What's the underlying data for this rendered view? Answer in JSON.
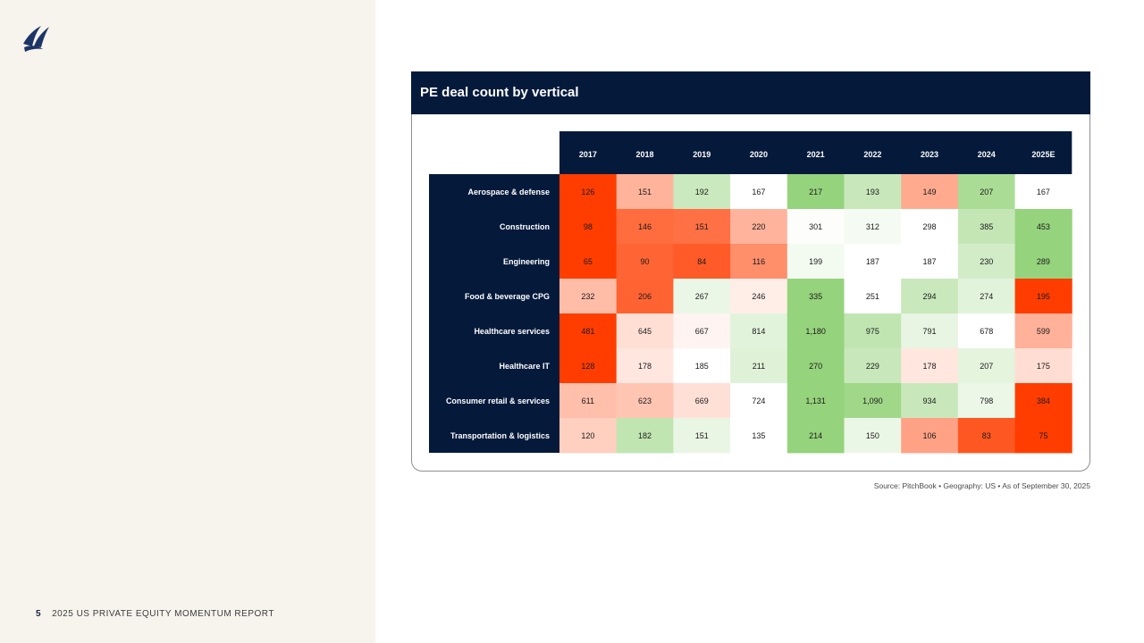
{
  "page": {
    "number": "5",
    "report_title": "2025 US PRIVATE EQUITY MOMENTUM REPORT",
    "logo": "sail-logo-icon"
  },
  "colors": {
    "navy": "#051a3b",
    "low": "#ff3d00",
    "mid": "#ffffff",
    "high": "#95d37c"
  },
  "chart_data": {
    "type": "heatmap",
    "title": "PE deal count by vertical",
    "columns": [
      "2017",
      "2018",
      "2019",
      "2020",
      "2021",
      "2022",
      "2023",
      "2024",
      "2025E"
    ],
    "rows": [
      {
        "label": "Aerospace & defense",
        "values": [
          126,
          151,
          192,
          167,
          217,
          193,
          149,
          207,
          167
        ],
        "display": [
          "126",
          "151",
          "192",
          "167",
          "217",
          "193",
          "149",
          "207",
          "167"
        ]
      },
      {
        "label": "Construction",
        "values": [
          98,
          146,
          151,
          220,
          301,
          312,
          298,
          385,
          453
        ],
        "display": [
          "98",
          "146",
          "151",
          "220",
          "301",
          "312",
          "298",
          "385",
          "453"
        ]
      },
      {
        "label": "Engineering",
        "values": [
          65,
          90,
          84,
          116,
          199,
          187,
          187,
          230,
          289
        ],
        "display": [
          "65",
          "90",
          "84",
          "116",
          "199",
          "187",
          "187",
          "230",
          "289"
        ]
      },
      {
        "label": "Food & beverage CPG",
        "values": [
          232,
          206,
          267,
          246,
          335,
          251,
          294,
          274,
          195
        ],
        "display": [
          "232",
          "206",
          "267",
          "246",
          "335",
          "251",
          "294",
          "274",
          "195"
        ]
      },
      {
        "label": "Healthcare services",
        "values": [
          481,
          645,
          667,
          814,
          1180,
          975,
          791,
          678,
          599
        ],
        "display": [
          "481",
          "645",
          "667",
          "814",
          "1,180",
          "975",
          "791",
          "678",
          "599"
        ]
      },
      {
        "label": "Healthcare IT",
        "values": [
          128,
          178,
          185,
          211,
          270,
          229,
          178,
          207,
          175
        ],
        "display": [
          "128",
          "178",
          "185",
          "211",
          "270",
          "229",
          "178",
          "207",
          "175"
        ]
      },
      {
        "label": "Consumer retail & services",
        "values": [
          611,
          623,
          669,
          724,
          1131,
          1090,
          934,
          798,
          384
        ],
        "display": [
          "611",
          "623",
          "669",
          "724",
          "1,131",
          "1,090",
          "934",
          "798",
          "384"
        ]
      },
      {
        "label": "Transportation & logistics",
        "values": [
          120,
          182,
          151,
          135,
          214,
          150,
          106,
          83,
          75
        ],
        "display": [
          "120",
          "182",
          "151",
          "135",
          "214",
          "150",
          "106",
          "83",
          "75"
        ]
      }
    ],
    "color_scale": "per-row diverging: lowest value red, median white, highest value green"
  },
  "source": {
    "text": "Source: PitchBook  •  Geography: US  •  As of September 30, 2025"
  }
}
